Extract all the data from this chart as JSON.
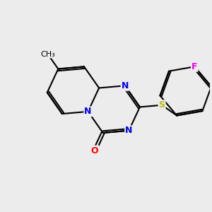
{
  "background_color": "#ececec",
  "bond_color": "#000000",
  "bond_width": 1.5,
  "atom_colors": {
    "N": "#0000ee",
    "O": "#ff0000",
    "S": "#bbbb00",
    "F": "#ee00ee",
    "C": "#000000"
  },
  "font_size": 9,
  "figsize": [
    3.0,
    3.0
  ],
  "dpi": 100
}
